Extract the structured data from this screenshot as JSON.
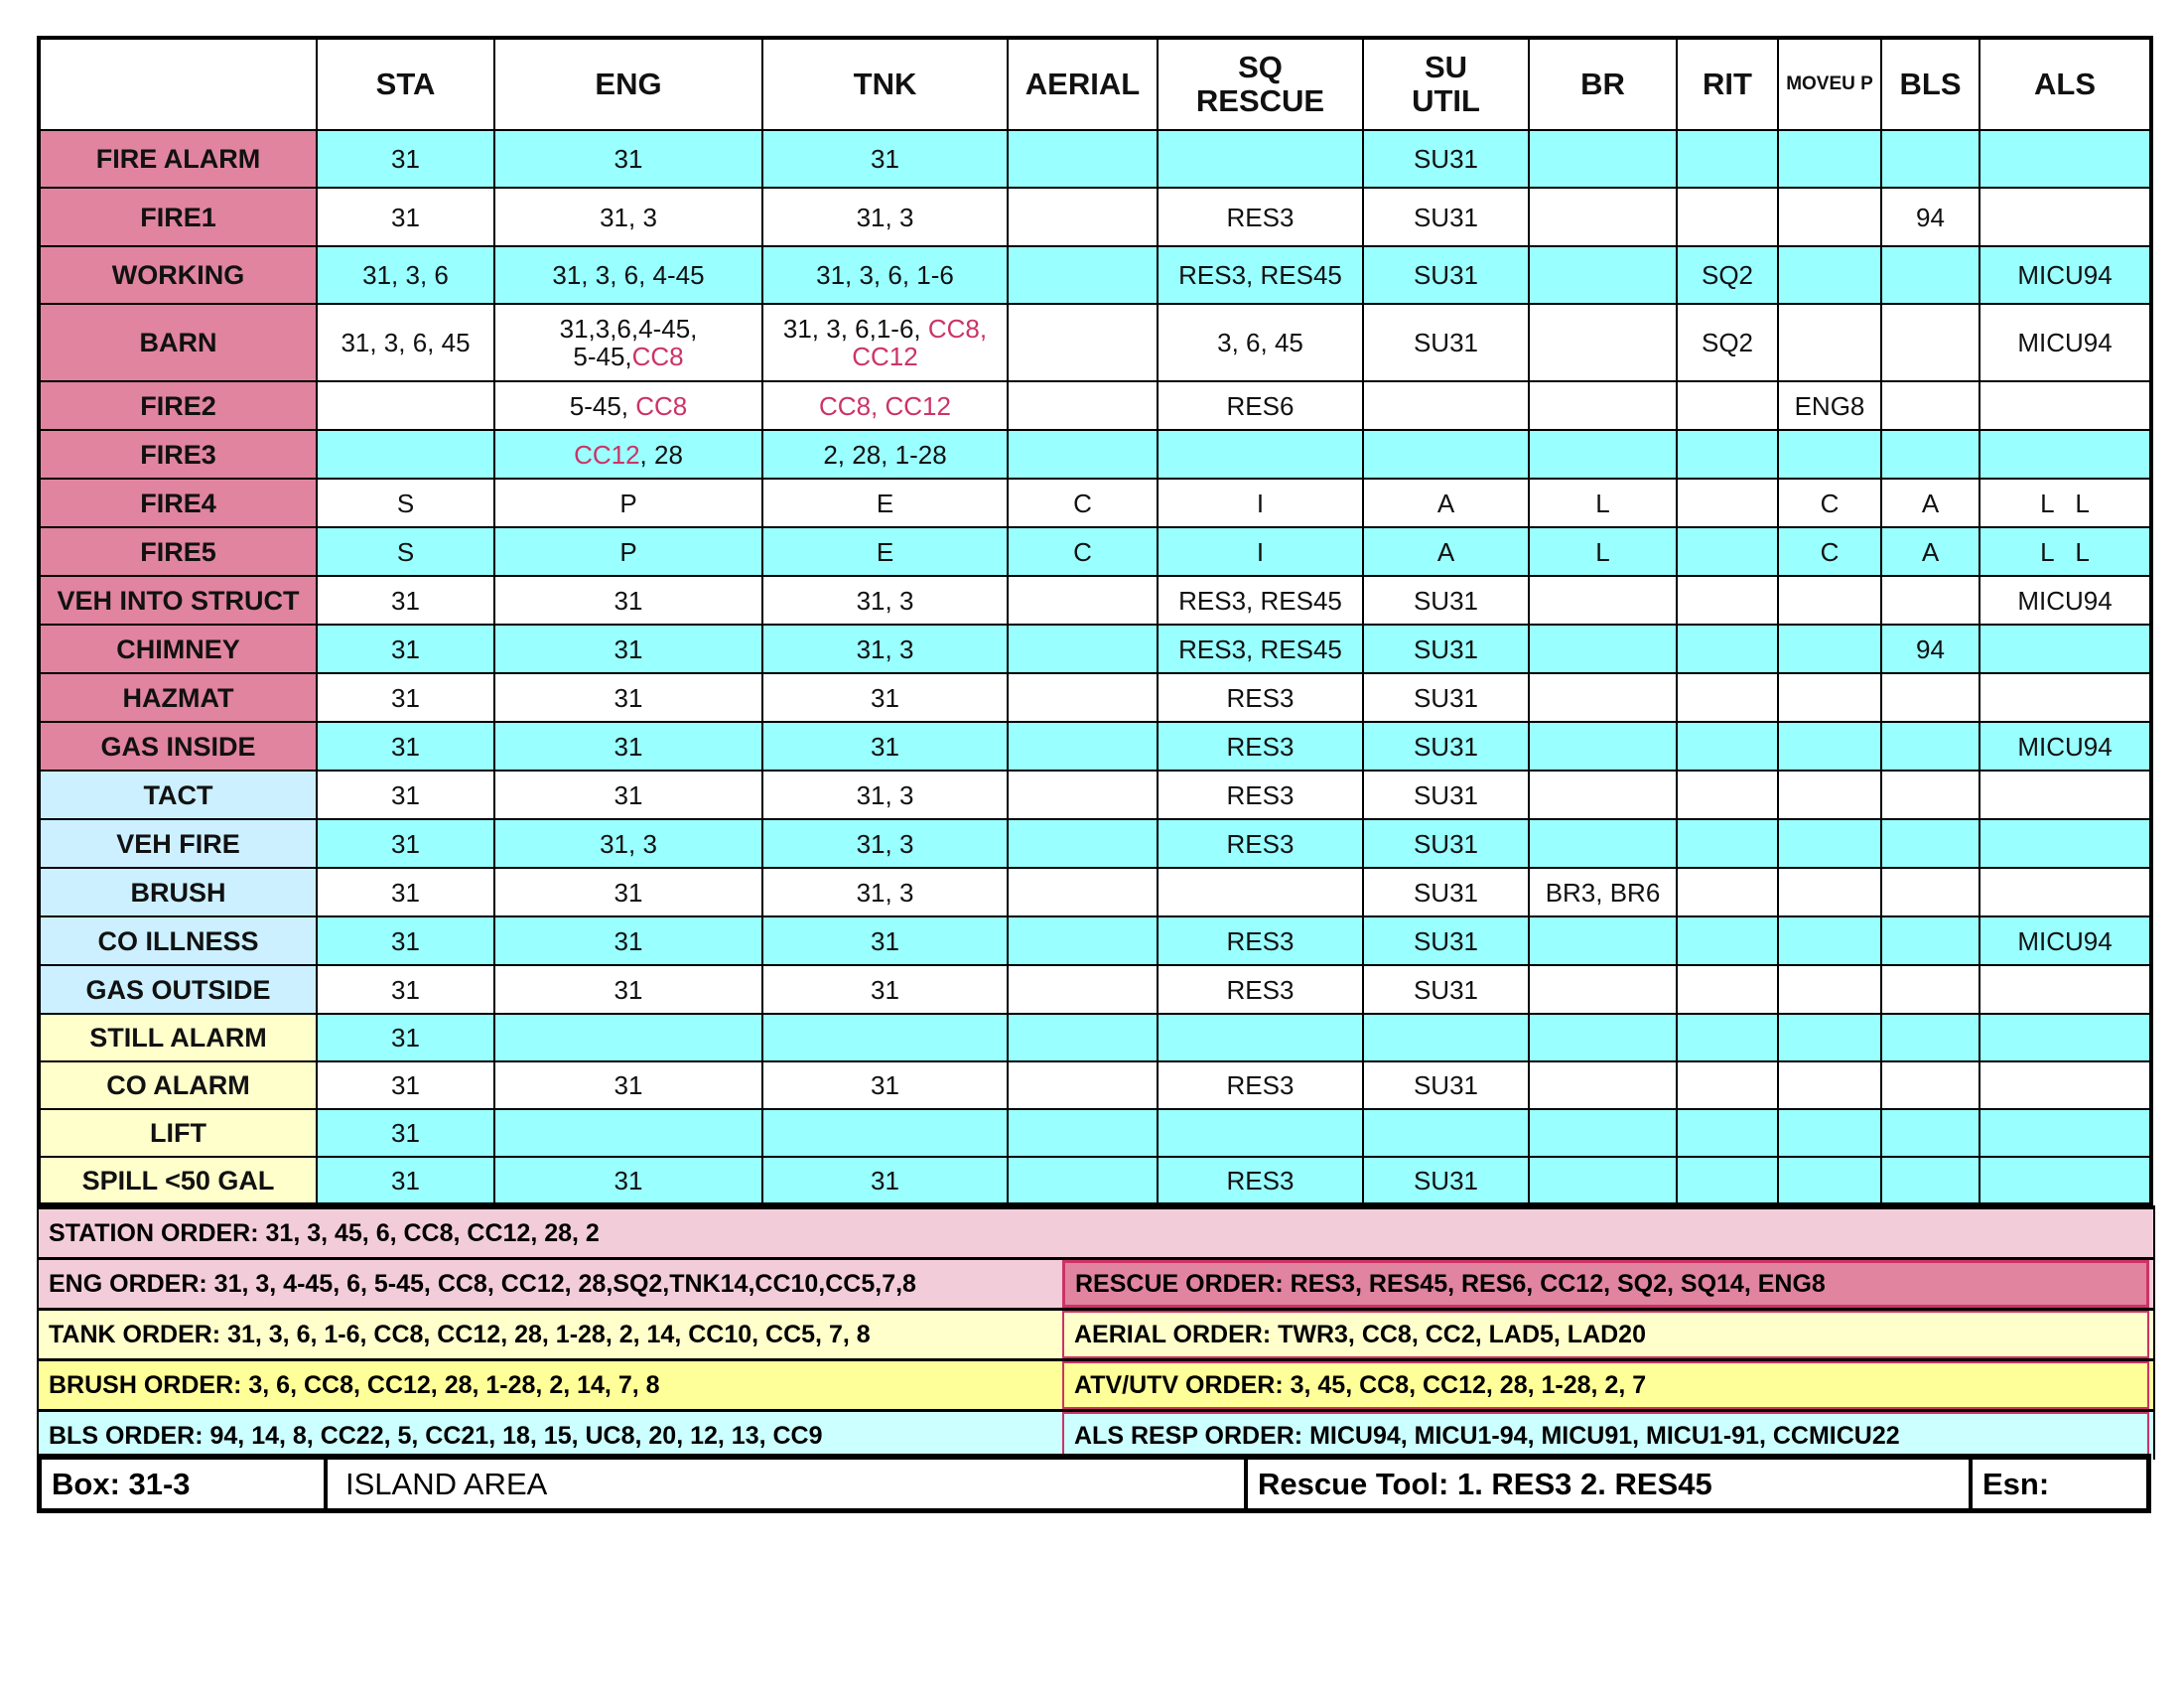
{
  "colors": {
    "label_pink": "#e0849f",
    "cyan": "#99ffff",
    "light_blue": "#ccf0ff",
    "light_yellow": "#ffffcc",
    "red_text": "#cc3366"
  },
  "headers": [
    "",
    "STA",
    "ENG",
    "TNK",
    "AERIAL",
    "SQ RESCUE",
    "SU UTIL",
    "BR",
    "RIT",
    "MOVEU P",
    "BLS",
    "ALS"
  ],
  "rows": [
    {
      "label": "FIRE ALARM",
      "group": "pink",
      "bg": "cyan",
      "cells": [
        "31",
        "31",
        "31",
        "",
        "",
        "SU31",
        "",
        "",
        "",
        "",
        ""
      ]
    },
    {
      "label": "FIRE1",
      "group": "pink",
      "bg": "white",
      "cells": [
        "31",
        "31, 3",
        "31, 3",
        "",
        "RES3",
        "SU31",
        "",
        "",
        "",
        "94",
        ""
      ]
    },
    {
      "label": "WORKING",
      "group": "pink",
      "bg": "cyan",
      "cells": [
        "31, 3, 6",
        "31, 3, 6, 4-45",
        "31, 3, 6, 1-6",
        "",
        "RES3, RES45",
        "SU31",
        "",
        "SQ2",
        "",
        "",
        "MICU94"
      ]
    },
    {
      "label": "BARN",
      "group": "pink",
      "bg": "white",
      "cells": [
        "31, 3, 6, 45",
        [
          {
            "t": "31,3,6,4-45,\n5-45,"
          },
          {
            "t": "CC8",
            "red": true
          }
        ],
        [
          {
            "t": "31, 3, 6,1-6, "
          },
          {
            "t": "CC8,\nCC12",
            "red": true
          }
        ],
        "",
        "3, 6, 45",
        "SU31",
        "",
        "SQ2",
        "",
        "",
        "MICU94"
      ]
    },
    {
      "label": "FIRE2",
      "group": "pink",
      "bg": "white",
      "cells": [
        "",
        [
          {
            "t": "5-45, "
          },
          {
            "t": "CC8",
            "red": true
          }
        ],
        [
          {
            "t": "CC8, CC12",
            "red": true
          }
        ],
        "",
        "RES6",
        "",
        "",
        "",
        "ENG8",
        "",
        ""
      ]
    },
    {
      "label": "FIRE3",
      "group": "pink",
      "bg": "cyan",
      "cells": [
        "",
        [
          {
            "t": "CC12",
            "red": true
          },
          {
            "t": ", 28"
          }
        ],
        "2, 28, 1-28",
        "",
        "",
        "",
        "",
        "",
        "",
        "",
        ""
      ]
    },
    {
      "label": "FIRE4",
      "group": "pink",
      "bg": "white",
      "cells": [
        "S",
        "P",
        "E",
        "C",
        "I",
        "A",
        "L",
        "",
        "C",
        "A",
        "L   L"
      ]
    },
    {
      "label": "FIRE5",
      "group": "pink",
      "bg": "cyan",
      "cells": [
        "S",
        "P",
        "E",
        "C",
        "I",
        "A",
        "L",
        "",
        "C",
        "A",
        "L   L"
      ]
    },
    {
      "label": "VEH INTO STRUCT",
      "group": "pink",
      "bg": "white",
      "cells": [
        "31",
        "31",
        "31, 3",
        "",
        "RES3, RES45",
        "SU31",
        "",
        "",
        "",
        "",
        "MICU94"
      ]
    },
    {
      "label": "CHIMNEY",
      "group": "pink",
      "bg": "cyan",
      "cells": [
        "31",
        "31",
        "31, 3",
        "",
        "RES3, RES45",
        "SU31",
        "",
        "",
        "",
        "94",
        ""
      ]
    },
    {
      "label": "HAZMAT",
      "group": "pink",
      "bg": "white",
      "cells": [
        "31",
        "31",
        "31",
        "",
        "RES3",
        "SU31",
        "",
        "",
        "",
        "",
        ""
      ]
    },
    {
      "label": "GAS INSIDE",
      "group": "pink",
      "bg": "cyan",
      "cells": [
        "31",
        "31",
        "31",
        "",
        "RES3",
        "SU31",
        "",
        "",
        "",
        "",
        "MICU94"
      ]
    },
    {
      "label": "TACT",
      "group": "lblue",
      "bg": "white",
      "cells": [
        "31",
        "31",
        "31, 3",
        "",
        "RES3",
        "SU31",
        "",
        "",
        "",
        "",
        ""
      ]
    },
    {
      "label": "VEH FIRE",
      "group": "lblue",
      "bg": "cyan",
      "cells": [
        "31",
        "31, 3",
        "31, 3",
        "",
        "RES3",
        "SU31",
        "",
        "",
        "",
        "",
        ""
      ]
    },
    {
      "label": "BRUSH",
      "group": "lblue",
      "bg": "white",
      "cells": [
        "31",
        "31",
        "31, 3",
        "",
        "",
        "SU31",
        "BR3, BR6",
        "",
        "",
        "",
        ""
      ]
    },
    {
      "label": "CO ILLNESS",
      "group": "lblue",
      "bg": "cyan",
      "cells": [
        "31",
        "31",
        "31",
        "",
        "RES3",
        "SU31",
        "",
        "",
        "",
        "",
        "MICU94"
      ]
    },
    {
      "label": "GAS OUTSIDE",
      "group": "lblue",
      "bg": "white",
      "cells": [
        "31",
        "31",
        "31",
        "",
        "RES3",
        "SU31",
        "",
        "",
        "",
        "",
        ""
      ]
    },
    {
      "label": "STILL ALARM",
      "group": "lyel",
      "bg": "cyan",
      "cells": [
        "31",
        "",
        "",
        "",
        "",
        "",
        "",
        "",
        "",
        "",
        ""
      ]
    },
    {
      "label": "CO ALARM",
      "group": "lyel",
      "bg": "white",
      "cells": [
        "31",
        "31",
        "31",
        "",
        "RES3",
        "SU31",
        "",
        "",
        "",
        "",
        ""
      ]
    },
    {
      "label": "LIFT",
      "group": "lyel",
      "bg": "cyan",
      "cells": [
        "31",
        "",
        "",
        "",
        "",
        "",
        "",
        "",
        "",
        "",
        ""
      ]
    },
    {
      "label": "SPILL <50 GAL",
      "group": "lyel",
      "bg": "cyan",
      "cells": [
        "31",
        "31",
        "31",
        "",
        "RES3",
        "SU31",
        "",
        "",
        "",
        "",
        ""
      ]
    }
  ],
  "orders": {
    "station": "STATION ORDER: 31, 3, 45, 6, CC8, CC12, 28, 2",
    "eng": "ENG ORDER: 31, 3, 4-45, 6, 5-45, CC8, CC12, 28,SQ2,TNK14,CC10,CC5,7,8",
    "rescue": "RESCUE ORDER: RES3, RES45, RES6, CC12, SQ2, SQ14, ENG8",
    "tank": "TANK ORDER: 31, 3, 6, 1-6, CC8, CC12, 28, 1-28, 2, 14, CC10, CC5, 7, 8",
    "aerial": "AERIAL ORDER: TWR3, CC8, CC2, LAD5, LAD20",
    "brush": "BRUSH ORDER: 3, 6, CC8, CC12, 28, 1-28, 2, 14, 7, 8",
    "atv": "ATV/UTV ORDER: 3, 45, CC8, CC12, 28, 1-28, 2, 7",
    "bls": "BLS ORDER: 94, 14, 8, CC22, 5, CC21, 18, 15, UC8, 20, 12, 13, CC9",
    "als": "ALS RESP ORDER: MICU94, MICU1-94, MICU91, MICU1-91, CCMICU22"
  },
  "footer": {
    "box": "Box: 31-3",
    "area": "ISLAND AREA",
    "rescue_tool": "Rescue Tool: 1. RES3  2. RES45",
    "esn": "Esn:"
  }
}
